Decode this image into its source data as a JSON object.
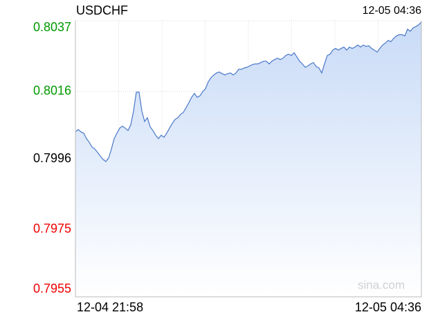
{
  "chart_data": {
    "type": "line",
    "title": "USDCHF",
    "time": "12-05 04:36",
    "watermark": "sina.com",
    "categories": [
      "12-04 21:58",
      null,
      null,
      null,
      null,
      null,
      null,
      null,
      null,
      null,
      null,
      null,
      null,
      null,
      null,
      null,
      null,
      null,
      null,
      null,
      null,
      null,
      null,
      null,
      null,
      null,
      null,
      null,
      null,
      null,
      null,
      null,
      null,
      null,
      null,
      null,
      null,
      null,
      null,
      null,
      null,
      null,
      null,
      null,
      null,
      null,
      null,
      null,
      null,
      null,
      null,
      null,
      null,
      null,
      null,
      null,
      null,
      null,
      null,
      null,
      null,
      null,
      null,
      null,
      null,
      null,
      null,
      null,
      null,
      null,
      null,
      null,
      null,
      null,
      null,
      null,
      null,
      null,
      null,
      null,
      null,
      null,
      null,
      null,
      null,
      null,
      null,
      null,
      null,
      null,
      null,
      null,
      null,
      null,
      null,
      null,
      null,
      null,
      null,
      null,
      null,
      null,
      null,
      null,
      null,
      null,
      null,
      null,
      null,
      null,
      null,
      null,
      null,
      null,
      null,
      null,
      null,
      null,
      null,
      null,
      null,
      null,
      null,
      null,
      null,
      "12-05 04:36"
    ],
    "series": [
      {
        "name": "USDCHF",
        "color": "#4a78c8",
        "values": [
          0.8004,
          0.80047,
          0.8004,
          0.80036,
          0.8002,
          0.80009,
          0.79995,
          0.79989,
          0.79979,
          0.79968,
          0.79958,
          0.79952,
          0.79962,
          0.79989,
          0.8002,
          0.80036,
          0.80051,
          0.80057,
          0.80051,
          0.80044,
          0.80061,
          0.80102,
          0.80158,
          0.80158,
          0.80102,
          0.80071,
          0.80082,
          0.80055,
          0.80044,
          0.8003,
          0.8002,
          0.8003,
          0.80024,
          0.80036,
          0.80051,
          0.80065,
          0.80077,
          0.80082,
          0.80092,
          0.80098,
          0.80112,
          0.80127,
          0.80143,
          0.80154,
          0.80143,
          0.80147,
          0.8016,
          0.80168,
          0.80189,
          0.80201,
          0.80209,
          0.80215,
          0.80218,
          0.80213,
          0.80209,
          0.80213,
          0.80215,
          0.80209,
          0.80215,
          0.80226,
          0.80226,
          0.8023,
          0.80232,
          0.80236,
          0.8024,
          0.80242,
          0.80242,
          0.80246,
          0.8025,
          0.8025,
          0.80242,
          0.8025,
          0.80255,
          0.80259,
          0.80255,
          0.80259,
          0.80267,
          0.80271,
          0.80267,
          0.80275,
          0.80263,
          0.8025,
          0.80242,
          0.80232,
          0.80236,
          0.80242,
          0.80246,
          0.80234,
          0.8023,
          0.80215,
          0.80242,
          0.80267,
          0.80271,
          0.80283,
          0.80288,
          0.80283,
          0.80288,
          0.80292,
          0.80283,
          0.80292,
          0.80288,
          0.80292,
          0.80298,
          0.80292,
          0.80298,
          0.80294,
          0.80296,
          0.80288,
          0.80283,
          0.80277,
          0.80288,
          0.80298,
          0.80304,
          0.80312,
          0.80308,
          0.80318,
          0.80325,
          0.80329,
          0.80329,
          0.80325,
          0.80345,
          0.80339,
          0.80349,
          0.80353,
          0.80358,
          0.80366
        ]
      }
    ],
    "ylim": [
      0.7955,
      0.8037
    ],
    "yticks": [
      0.7955,
      0.7975,
      0.7996,
      0.8016,
      0.8037
    ],
    "base": 0.7996,
    "up_color": "#009900",
    "down_color": "#ee0000",
    "base_color": "#000000",
    "grid": true
  }
}
